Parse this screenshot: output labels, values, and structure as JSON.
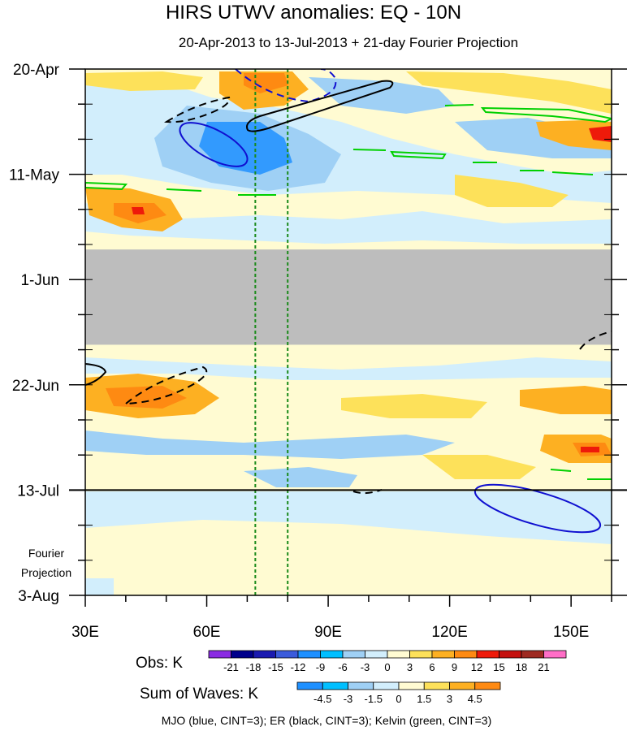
{
  "chart_data": {
    "type": "heatmap",
    "title": "HIRS UTWV anomalies: EQ - 10N",
    "subtitle": "20-Apr-2013 to 13-Jul-2013 + 21-day Fourier Projection",
    "x_range": [
      30,
      160
    ],
    "x_ticks": [
      {
        "value": 30,
        "label": "30E"
      },
      {
        "value": 60,
        "label": "60E"
      },
      {
        "value": 90,
        "label": "90E"
      },
      {
        "value": 120,
        "label": "120E"
      },
      {
        "value": 150,
        "label": "150E"
      }
    ],
    "y_range_days": [
      0,
      105
    ],
    "y_ticks": [
      {
        "day": 0,
        "label": "20-Apr"
      },
      {
        "day": 21,
        "label": "11-May"
      },
      {
        "day": 42,
        "label": "1-Jun"
      },
      {
        "day": 63,
        "label": "22-Jun"
      },
      {
        "day": 84,
        "label": "13-Jul"
      },
      {
        "day": 105,
        "label": "3-Aug"
      }
    ],
    "observation_end_day": 84,
    "projection_label_line1": "Fourier",
    "projection_label_line2": "Projection",
    "missing_data_days": [
      36,
      55
    ],
    "missing_data_color": "#bdbdbd",
    "reference_longitudes": [
      72,
      80
    ],
    "obs_colorbar": {
      "label": "Obs: K",
      "levels": [
        "-21",
        "-18",
        "-15",
        "-12",
        "-9",
        "-6",
        "-3",
        "0",
        "3",
        "6",
        "9",
        "12",
        "15",
        "18",
        "21"
      ],
      "colors": [
        "#8a2be2",
        "#00008b",
        "#1a1ab0",
        "#3b5bdb",
        "#1e90ff",
        "#00bfff",
        "#9fd0f5",
        "#d2eefc",
        "#fffbd2",
        "#fde15a",
        "#fdb022",
        "#fe8a12",
        "#ee1a0a",
        "#c4110f",
        "#9e2a22",
        "#ff6ec7"
      ]
    },
    "wave_colorbar": {
      "label": "Sum of Waves: K",
      "levels": [
        "-4.5",
        "-3",
        "-1.5",
        "0",
        "1.5",
        "3",
        "4.5"
      ],
      "colors": [
        "#1e90ff",
        "#00bfff",
        "#9fd0f5",
        "#d2eefc",
        "#fffbd2",
        "#fde15a",
        "#fdb022",
        "#fe8a12"
      ]
    },
    "wave_legend": "MJO (blue, CINT=3); ER (black, CINT=3); Kelvin (green, CINT=3)",
    "colors": {
      "mjo": "#1010d0",
      "er": "#000000",
      "kelvin": "#00d000",
      "reference": "#1a8a1a"
    }
  }
}
